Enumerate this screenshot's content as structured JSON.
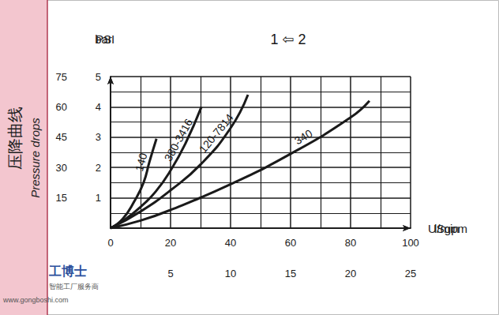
{
  "chart_data": {
    "type": "line",
    "title": "1 ⇦ 2",
    "xlabel": "l/min",
    "x2label": "USgpm",
    "ylabel": "bar",
    "y2label": "PSI",
    "side_labels": [
      "压降曲线",
      "Pressure drops"
    ],
    "annotations": [
      "工博士",
      "智能工厂服务商",
      "www.gongboshi.com"
    ],
    "xlim": [
      0,
      100
    ],
    "xticks": [
      0,
      20,
      40,
      60,
      80,
      100
    ],
    "x2lim": [
      0,
      25
    ],
    "x2ticks": [
      5,
      10,
      15,
      20,
      25
    ],
    "ylim": [
      0,
      5
    ],
    "yticks": [
      1,
      2,
      3,
      4,
      5
    ],
    "y2lim": [
      0,
      75
    ],
    "y2ticks": [
      15,
      30,
      45,
      60,
      75
    ],
    "grid": true,
    "series": [
      {
        "name": "140",
        "color": "#1a1a1a",
        "x": [
          0,
          4,
          8,
          11,
          13,
          15.3
        ],
        "values": [
          0,
          0.3,
          0.9,
          1.5,
          2.2,
          2.95
        ]
      },
      {
        "name": "380-3416",
        "color": "#1a1a1a",
        "x": [
          0,
          5,
          10,
          15,
          20,
          25,
          30.3
        ],
        "values": [
          0,
          0.3,
          0.7,
          1.2,
          1.9,
          2.8,
          4.0
        ]
      },
      {
        "name": "120-7814",
        "color": "#1a1a1a",
        "x": [
          0,
          10,
          20,
          30,
          40,
          45.8
        ],
        "values": [
          0,
          0.55,
          1.25,
          2.1,
          3.3,
          4.4
        ]
      },
      {
        "name": "340",
        "color": "#1a1a1a",
        "x": [
          0,
          10,
          20,
          40,
          60,
          80,
          86.3
        ],
        "values": [
          0,
          0.25,
          0.6,
          1.45,
          2.45,
          3.65,
          4.2
        ]
      }
    ]
  }
}
